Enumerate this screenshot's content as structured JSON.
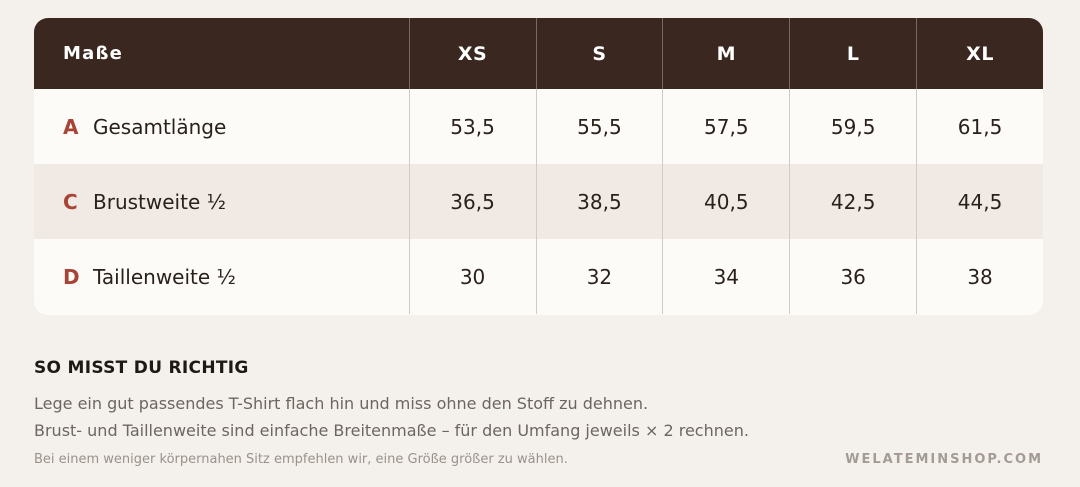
{
  "table": {
    "header": {
      "label": "Maße",
      "sizes": [
        "XS",
        "S",
        "M",
        "L",
        "XL"
      ]
    },
    "rows": [
      {
        "letter": "A",
        "name": "Gesamtlänge",
        "values": [
          "53,5",
          "55,5",
          "57,5",
          "59,5",
          "61,5"
        ]
      },
      {
        "letter": "C",
        "name": "Brustweite ½",
        "values": [
          "36,5",
          "38,5",
          "40,5",
          "42,5",
          "44,5"
        ]
      },
      {
        "letter": "D",
        "name": "Taillenweite ½",
        "values": [
          "30",
          "32",
          "34",
          "36",
          "38"
        ]
      }
    ]
  },
  "info": {
    "title": "SO MISST DU RICHTIG",
    "line1": "Lege ein gut passendes T-Shirt flach hin und miss ohne den Stoff zu dehnen.",
    "line2": "Brust- und Taillenweite sind einfache Breitenmaße – für den Umfang jeweils × 2 rechnen.",
    "note": "Bei einem weniger körpernahen Sitz empfehlen wir, eine Größe größer zu wählen.",
    "brand": "WELATEMINSHOP.COM"
  },
  "colors": {
    "header_bg": "#3a2820",
    "accent_letter": "#a84436",
    "shaded_row": "#f1eae4",
    "page_bg": "#f4f1ec"
  }
}
